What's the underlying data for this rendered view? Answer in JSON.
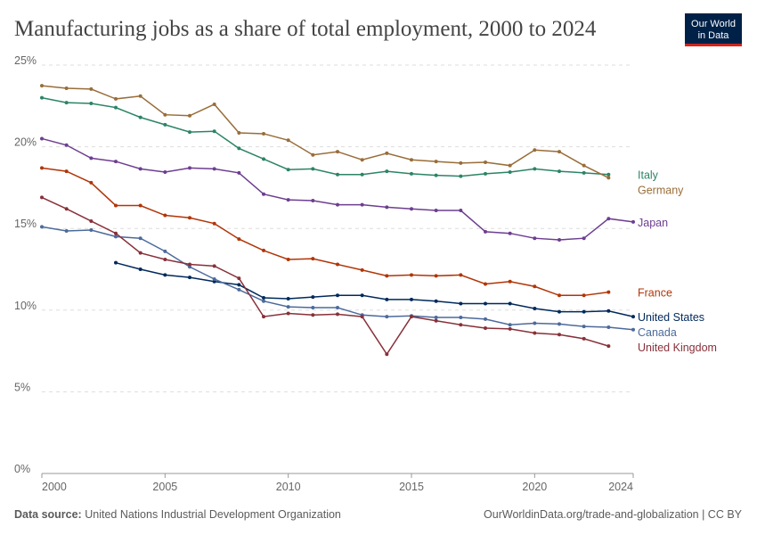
{
  "chart_data": {
    "type": "line",
    "title": "Manufacturing jobs as a share of total employment, 2000 to 2024",
    "logo": [
      "Our World",
      "in Data"
    ],
    "source_label": "Data source:",
    "source": "United Nations Industrial Development Organization",
    "footer_right": "OurWorldinData.org/trade-and-globalization | CC BY",
    "x": [
      2000,
      2001,
      2002,
      2003,
      2004,
      2005,
      2006,
      2007,
      2008,
      2009,
      2010,
      2011,
      2012,
      2013,
      2014,
      2015,
      2016,
      2017,
      2018,
      2019,
      2020,
      2021,
      2022,
      2023,
      2024
    ],
    "xlim": [
      2000,
      2024
    ],
    "xticks": [
      2000,
      2005,
      2010,
      2015,
      2020,
      2024
    ],
    "ylim": [
      0,
      25
    ],
    "yticks": [
      {
        "value": 0,
        "label": "0%"
      },
      {
        "value": 5,
        "label": "5%"
      },
      {
        "value": 10,
        "label": "10%"
      },
      {
        "value": 15,
        "label": "15%"
      },
      {
        "value": 20,
        "label": "20%"
      },
      {
        "value": 25,
        "label": "25%"
      }
    ],
    "grid": true,
    "series": [
      {
        "name": "Italy",
        "color": "#2c8465",
        "values": [
          23.0,
          22.7,
          22.65,
          22.4,
          21.8,
          21.35,
          20.9,
          20.95,
          19.9,
          19.25,
          18.6,
          18.65,
          18.3,
          18.3,
          18.5,
          18.35,
          18.25,
          18.2,
          18.35,
          18.45,
          18.65,
          18.5,
          18.4,
          18.3,
          null
        ]
      },
      {
        "name": "Germany",
        "color": "#996d39",
        "values": [
          23.74,
          23.58,
          23.53,
          22.93,
          23.1,
          21.96,
          21.9,
          22.6,
          20.85,
          20.8,
          20.4,
          19.5,
          19.7,
          19.2,
          19.6,
          19.2,
          19.1,
          19.0,
          19.05,
          18.85,
          19.8,
          19.7,
          18.85,
          18.1,
          null
        ]
      },
      {
        "name": "Japan",
        "color": "#6d3e91",
        "values": [
          20.5,
          20.1,
          19.3,
          19.1,
          18.65,
          18.45,
          18.7,
          18.65,
          18.4,
          17.1,
          16.75,
          16.7,
          16.45,
          16.45,
          16.3,
          16.2,
          16.1,
          16.1,
          14.8,
          14.7,
          14.4,
          14.3,
          14.4,
          15.6,
          15.4
        ]
      },
      {
        "name": "France",
        "color": "#b13507",
        "values": [
          18.7,
          18.5,
          17.8,
          16.4,
          16.4,
          15.8,
          15.65,
          15.3,
          14.35,
          13.65,
          13.1,
          13.15,
          12.8,
          12.45,
          12.1,
          12.15,
          12.1,
          12.15,
          11.6,
          11.75,
          11.45,
          10.9,
          10.9,
          11.1,
          null
        ]
      },
      {
        "name": "United States",
        "color": "#00295b",
        "values": [
          null,
          null,
          null,
          12.9,
          12.5,
          12.15,
          12.0,
          11.75,
          11.55,
          10.75,
          10.7,
          10.8,
          10.9,
          10.9,
          10.65,
          10.65,
          10.55,
          10.4,
          10.4,
          10.4,
          10.1,
          9.9,
          9.9,
          9.95,
          9.6
        ]
      },
      {
        "name": "Canada",
        "color": "#4c6a9c",
        "values": [
          15.1,
          14.85,
          14.9,
          14.5,
          14.4,
          13.6,
          12.65,
          11.9,
          11.25,
          10.55,
          10.2,
          10.15,
          10.15,
          9.7,
          9.6,
          9.65,
          9.55,
          9.55,
          9.45,
          9.1,
          9.2,
          9.15,
          9.0,
          8.95,
          8.8
        ]
      },
      {
        "name": "United Kingdom",
        "color": "#883039",
        "values": [
          16.9,
          16.2,
          15.45,
          14.7,
          13.5,
          13.1,
          12.8,
          12.7,
          11.95,
          9.6,
          9.8,
          9.7,
          9.75,
          9.6,
          7.3,
          9.6,
          9.35,
          9.1,
          8.9,
          8.85,
          8.6,
          8.5,
          8.25,
          7.8,
          null
        ]
      }
    ]
  }
}
